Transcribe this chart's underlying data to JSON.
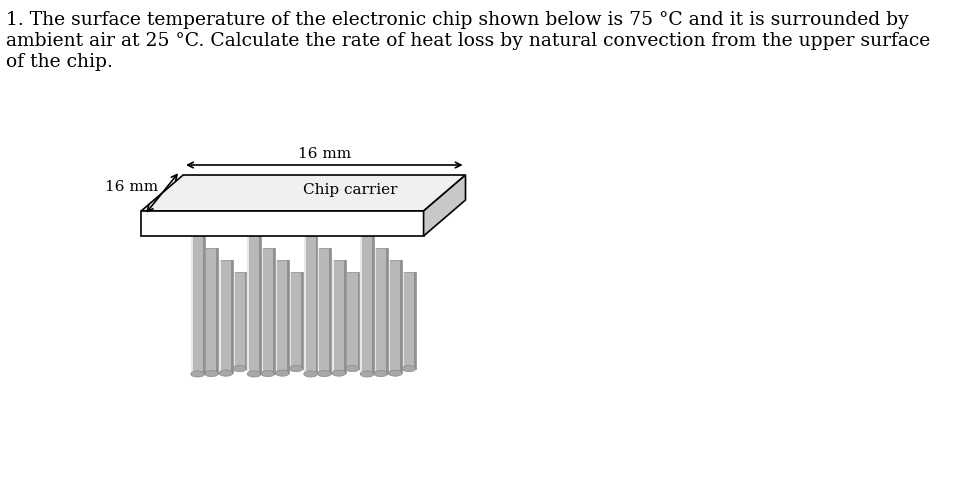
{
  "background_color": "#ffffff",
  "text_question": "1. The surface temperature of the electronic chip shown below is 75 °C and it is surrounded by\nambient air at 25 °C. Calculate the rate of heat loss by natural convection from the upper surface\nof the chip.",
  "text_fontsize": 13.5,
  "label_16mm_horiz": "16 mm",
  "label_16mm_diag": "16 mm",
  "label_chip": "Chip carrier",
  "label_fontsize": 11,
  "platform_top_color": "#f0f0f0",
  "platform_front_color": "#ffffff",
  "platform_side_color": "#c8c8c8",
  "pin_mid_color": "#b8b8b8",
  "pin_dark_color": "#909090",
  "pin_highlight_color": "#e8e8e8",
  "pin_tip_color": "#a8a8a8"
}
